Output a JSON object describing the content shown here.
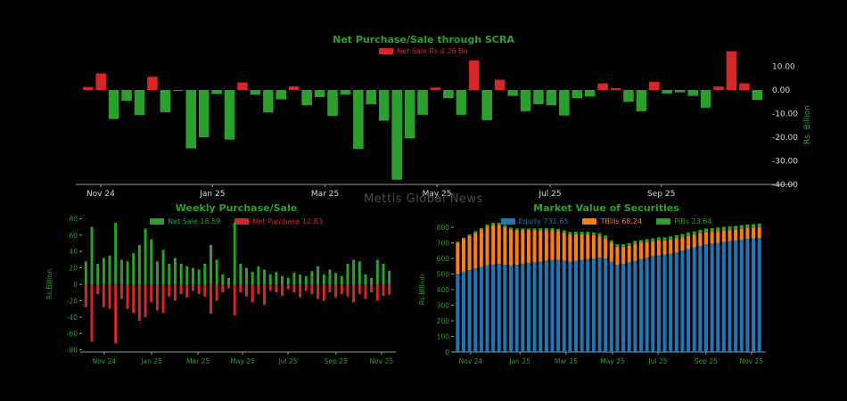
{
  "watermark": "Mettis Global News",
  "colors": {
    "green": "#2ca02c",
    "red": "#d62728",
    "blue": "#1f77b4",
    "orange": "#ff7f0e",
    "axis_text_light": "#d8d8d8",
    "axis_line": "#9a9a9a",
    "background": "#000000"
  },
  "chart_data": [
    {
      "type": "bar",
      "title": "Net Purchase/Sale through SCRA",
      "legend": [
        {
          "label": "Net Sale Rs 4.26 Bn",
          "color": "#d62728"
        }
      ],
      "ylabel": "Rs. Billion",
      "ylim": [
        -40,
        17
      ],
      "yticks": [
        10,
        0,
        -10,
        -20,
        -30,
        -40
      ],
      "ytick_labels": [
        "10.00",
        "0.00",
        "-10.00",
        "-20.00",
        "-30.00",
        "-40.00"
      ],
      "xtick_labels": [
        "Nov 24",
        "Jan 25",
        "Mar 25",
        "May 25",
        "Jul 25",
        "Sep 25"
      ],
      "positive_color": "#d62728",
      "negative_color": "#2ca02c",
      "values": [
        1.3,
        7.0,
        -12.3,
        -4.6,
        -10.6,
        5.6,
        -9.4,
        -0.4,
        -24.7,
        -20.0,
        -1.7,
        -21.0,
        3.2,
        -2.0,
        -9.5,
        -4.0,
        1.5,
        -6.5,
        -3.0,
        -11.0,
        -2.0,
        -25.0,
        -6.0,
        -13.0,
        -38.0,
        -20.5,
        -10.5,
        1.0,
        -3.5,
        -10.5,
        12.5,
        -12.8,
        4.3,
        -2.5,
        -9.0,
        -6.0,
        -6.5,
        -10.8,
        -3.5,
        -2.8,
        2.8,
        0.8,
        -5.0,
        -9.0,
        3.5,
        -1.5,
        -1.0,
        -2.5,
        -7.5,
        1.5,
        16.4,
        2.8,
        -4.26
      ]
    },
    {
      "type": "paired-bar",
      "title": "Weekly Purchase/Sale",
      "legend": [
        {
          "label": "Net Sale 16.59",
          "color": "#2ca02c"
        },
        {
          "label": "Net Purchase 12.83",
          "color": "#d62728"
        }
      ],
      "ylabel": "Rs.Billion",
      "ylim": [
        -80,
        80
      ],
      "yticks": [
        80,
        60,
        40,
        20,
        0,
        -20,
        -40,
        -60,
        -80
      ],
      "ytick_labels": [
        "80",
        "60",
        "40",
        "20",
        "0",
        "-20",
        "-40",
        "-60",
        "-80"
      ],
      "xtick_labels": [
        "Nov 24",
        "Jan 25",
        "Mar 25",
        "May 25",
        "Jul 25",
        "Sep 25",
        "Nov 25"
      ],
      "series": [
        {
          "name": "Net Sale",
          "color": "#2ca02c",
          "values": [
            28,
            70,
            25,
            32,
            35,
            75,
            30,
            28,
            38,
            48,
            68,
            55,
            28,
            42,
            25,
            32,
            25,
            22,
            20,
            18,
            25,
            48,
            30,
            12,
            8,
            75,
            25,
            20,
            15,
            22,
            18,
            12,
            15,
            10,
            8,
            14,
            12,
            10,
            16,
            22,
            12,
            18,
            14,
            10,
            25,
            30,
            28,
            12,
            8,
            30,
            25,
            16.59
          ]
        },
        {
          "name": "Net Purchase",
          "color": "#d62728",
          "values": [
            -28,
            -70,
            -12,
            -28,
            -30,
            -72,
            -18,
            -30,
            -35,
            -45,
            -40,
            -22,
            -32,
            -35,
            -15,
            -20,
            -12,
            -16,
            -8,
            -12,
            -15,
            -36,
            -20,
            -10,
            -5,
            -38,
            -10,
            -15,
            -22,
            -12,
            -25,
            -8,
            -10,
            -14,
            -6,
            -10,
            -16,
            -8,
            -12,
            -18,
            -20,
            -10,
            -16,
            -12,
            -15,
            -22,
            -12,
            -18,
            -10,
            -20,
            -14,
            -12.83
          ]
        }
      ]
    },
    {
      "type": "stacked-bar",
      "title": "Market Value of Securities",
      "legend": [
        {
          "label": "Equity 731.65",
          "color": "#1f77b4"
        },
        {
          "label": "TBills 68.24",
          "color": "#ff7f0e"
        },
        {
          "label": "PIBs 23.64",
          "color": "#2ca02c"
        }
      ],
      "ylabel": "Rs.Billion",
      "ylim": [
        0,
        850
      ],
      "yticks": [
        800,
        700,
        600,
        500,
        400,
        300,
        200,
        100,
        0
      ],
      "ytick_labels": [
        "800",
        "700",
        "600",
        "500",
        "400",
        "300",
        "200",
        "100",
        "0"
      ],
      "xtick_labels": [
        "Nov 24",
        "Jan 25",
        "Mar 25",
        "May 25",
        "Jul 25",
        "Sep 25",
        "Nov 25"
      ],
      "series": [
        {
          "name": "Equity",
          "color": "#1f77b4",
          "values": [
            500,
            515,
            525,
            535,
            545,
            555,
            560,
            565,
            560,
            555,
            560,
            565,
            570,
            575,
            580,
            585,
            590,
            590,
            585,
            580,
            585,
            590,
            595,
            600,
            605,
            600,
            580,
            560,
            565,
            575,
            585,
            595,
            605,
            615,
            620,
            625,
            630,
            640,
            650,
            660,
            670,
            680,
            690,
            695,
            700,
            705,
            710,
            715,
            720,
            725,
            728,
            731.65
          ]
        },
        {
          "name": "TBills",
          "color": "#ff7f0e",
          "values": [
            200,
            210,
            220,
            230,
            240,
            250,
            255,
            250,
            240,
            230,
            220,
            215,
            210,
            205,
            200,
            195,
            190,
            185,
            180,
            175,
            170,
            165,
            160,
            150,
            140,
            130,
            120,
            115,
            110,
            105,
            110,
            105,
            100,
            95,
            95,
            90,
            90,
            88,
            85,
            85,
            82,
            80,
            78,
            76,
            75,
            74,
            72,
            70,
            70,
            69,
            68.5,
            68.24
          ]
        },
        {
          "name": "PIBs",
          "color": "#2ca02c",
          "values": [
            8,
            8,
            9,
            10,
            10,
            12,
            14,
            15,
            14,
            13,
            12,
            12,
            12,
            13,
            13,
            14,
            14,
            15,
            15,
            15,
            16,
            16,
            16,
            17,
            17,
            17,
            16,
            16,
            17,
            18,
            18,
            18,
            19,
            19,
            20,
            20,
            21,
            21,
            22,
            22,
            22,
            23,
            23,
            23,
            24,
            24,
            24,
            24,
            24,
            24,
            23.8,
            23.64
          ]
        }
      ]
    }
  ]
}
